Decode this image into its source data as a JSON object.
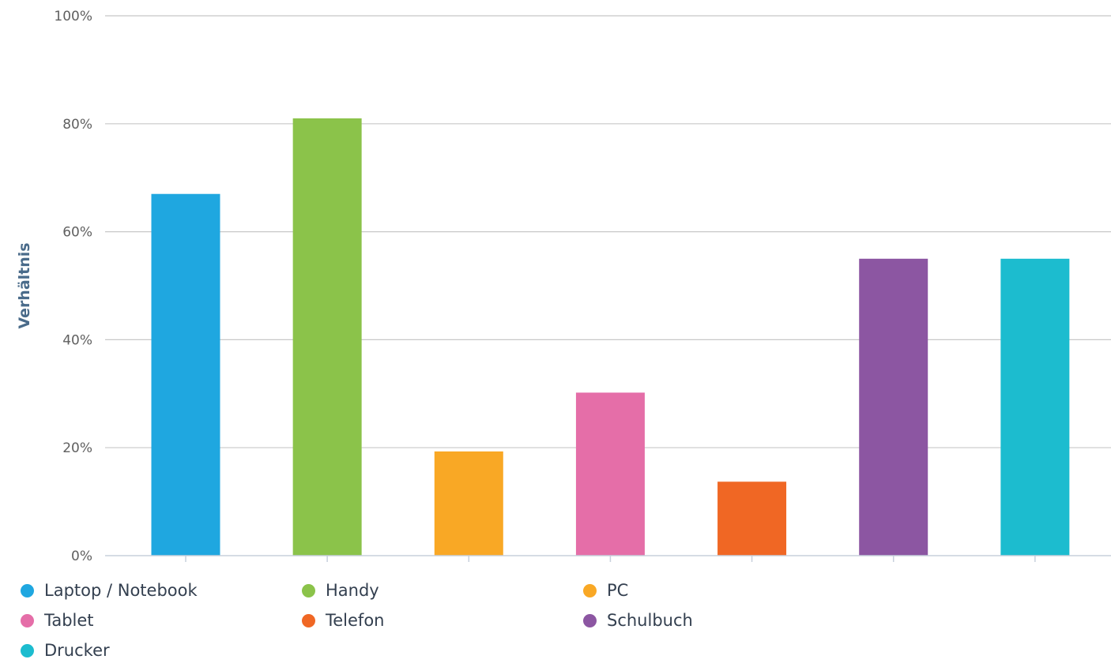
{
  "chart_data": {
    "type": "bar",
    "title": "",
    "xlabel": "",
    "ylabel": "Verhältnis",
    "ylim": [
      0,
      100
    ],
    "y_ticks": [
      "0%",
      "20%",
      "40%",
      "60%",
      "80%",
      "100%"
    ],
    "grid": true,
    "legend_position": "bottom",
    "series": [
      {
        "name": "Laptop / Notebook",
        "value": 67,
        "color": "#1fa7e0"
      },
      {
        "name": "Handy",
        "value": 81,
        "color": "#8bc34a"
      },
      {
        "name": "PC",
        "value": 19.3,
        "color": "#f9a825"
      },
      {
        "name": "Tablet",
        "value": 30.2,
        "color": "#e56ea8"
      },
      {
        "name": "Telefon",
        "value": 13.7,
        "color": "#f06724"
      },
      {
        "name": "Schulbuch",
        "value": 55,
        "color": "#8c56a2"
      },
      {
        "name": "Drucker",
        "value": 55,
        "color": "#1cbccf"
      }
    ]
  }
}
